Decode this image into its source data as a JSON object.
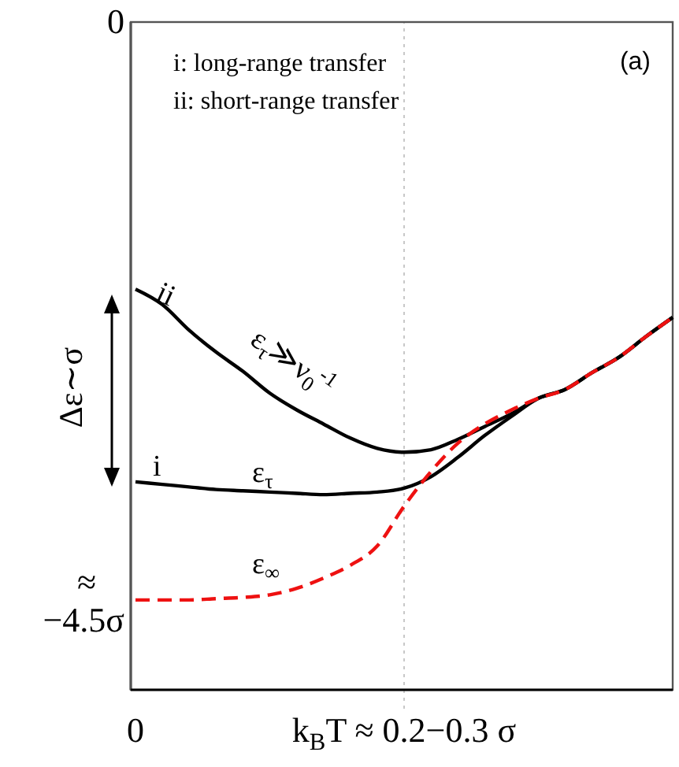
{
  "chart_data": {
    "type": "line",
    "ylim": [
      -5.2,
      0
    ],
    "categories": [
      "0",
      null,
      null,
      null,
      null,
      null,
      null,
      null,
      null,
      null,
      "k$_{B}$T ≈ 0.2−0.3 σ",
      null,
      null,
      null,
      null,
      null,
      null,
      null,
      null,
      null,
      null
    ],
    "yticks": [
      {
        "value": 0,
        "label": "0"
      },
      {
        "value": -4.5,
        "label": "≈ −4.5σ"
      }
    ],
    "grid": false,
    "ref_lines": [
      {
        "axis": "x",
        "value": "k$_{B}$T ≈ 0.2−0.3 σ",
        "color": "#c8c8c8",
        "line_style": "dotted"
      }
    ],
    "series": [
      {
        "color": "#000000",
        "line_style": "solid",
        "values": [
          -2.08,
          -2.2,
          -2.4,
          -2.57,
          -2.72,
          -2.89,
          -3.02,
          -3.13,
          -3.24,
          -3.32,
          -3.35,
          -3.33,
          -3.25,
          -3.15,
          -3.05,
          -2.93,
          -2.86,
          -2.73,
          -2.61,
          -2.45,
          -2.3
        ]
      },
      {
        "color": "#000000",
        "line_style": "solid",
        "values": [
          -3.58,
          -3.6,
          -3.62,
          -3.64,
          -3.65,
          -3.66,
          -3.67,
          -3.68,
          -3.67,
          -3.66,
          -3.63,
          -3.54,
          -3.39,
          -3.22,
          -3.07,
          -2.93,
          -2.86,
          -2.73,
          -2.61,
          -2.45,
          -2.3
        ]
      },
      {
        "color": "#ee1111",
        "line_style": "dashed",
        "values": [
          -4.5,
          -4.5,
          -4.5,
          -4.49,
          -4.48,
          -4.46,
          -4.41,
          -4.33,
          -4.23,
          -4.08,
          -3.77,
          -3.5,
          -3.28,
          -3.13,
          -3.02,
          -2.93,
          -2.86,
          -2.73,
          -2.61,
          -2.45,
          -2.3
        ]
      }
    ],
    "annotations": [
      "i: long-range transfer",
      "ii: short-range transfer",
      "(a)",
      "Δε∼σ",
      "ii",
      "i",
      "ε$_{τ}$≫ν$_{0}$$^{-1}$",
      "ε$_{τ}$",
      "ε$_{∞}$"
    ]
  }
}
